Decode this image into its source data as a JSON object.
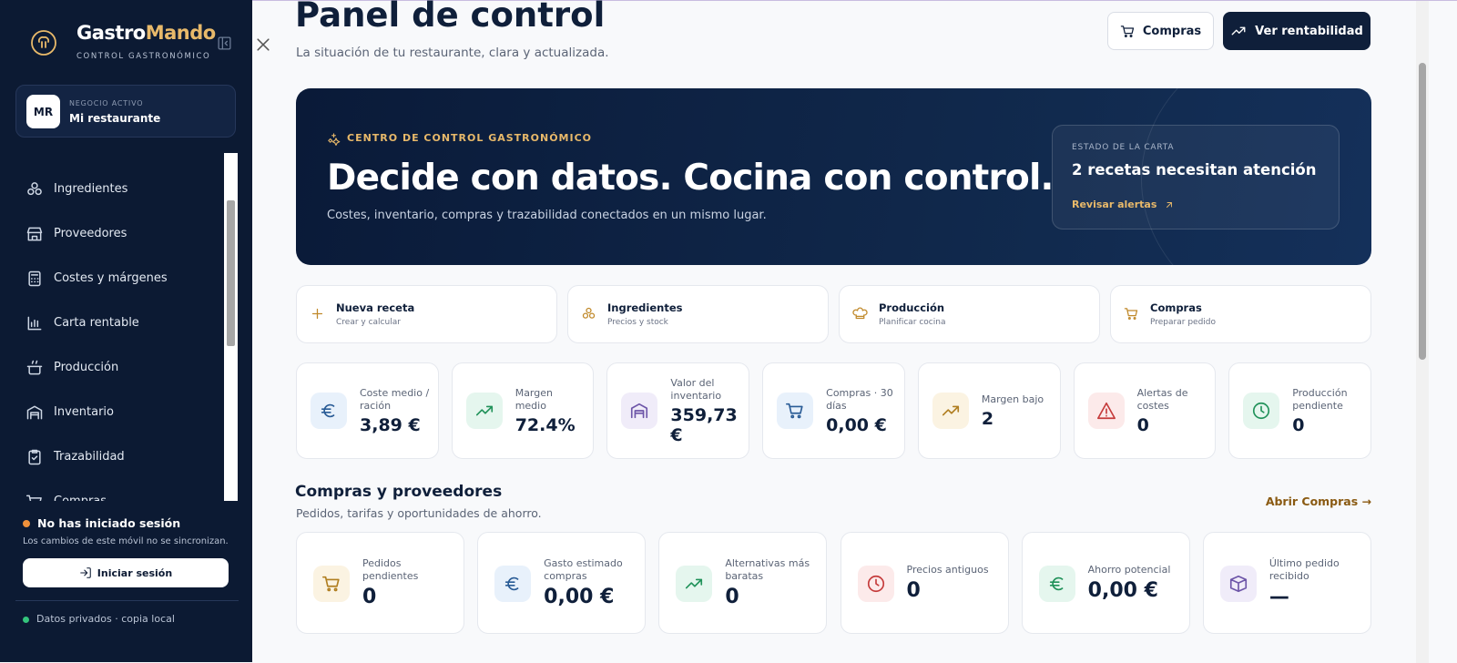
{
  "sidebar": {
    "brand": {
      "name_a": "Gastro",
      "name_b": "Mando",
      "tagline": "CONTROL GASTRONÓMICO"
    },
    "business": {
      "initials": "MR",
      "label": "NEGOCIO ACTIVO",
      "name": "Mi restaurante"
    },
    "nav": [
      "Ingredientes",
      "Proveedores",
      "Costes y márgenes",
      "Carta rentable",
      "Producción",
      "Inventario",
      "Trazabilidad",
      "Compras"
    ],
    "session": {
      "title": "No has iniciado sesión",
      "note": "Los cambios de este móvil no se sincronizan.",
      "button": "Iniciar sesión"
    },
    "footer": "Datos privados · copia local"
  },
  "header": {
    "title": "Panel de control",
    "subtitle": "La situación de tu restaurante, clara y actualizada.",
    "buttons": [
      "Compras",
      "Ver rentabilidad"
    ]
  },
  "hero": {
    "eyebrow": "CENTRO DE CONTROL GASTRONÓMICO",
    "title": "Decide con datos. Cocina con control.",
    "text": "Costes, inventario, compras y trazabilidad conectados en un mismo lugar.",
    "status": {
      "label": "ESTADO DE LA CARTA",
      "title": "2 recetas necesitan atención",
      "link": "Revisar alertas"
    }
  },
  "quick_actions": [
    {
      "title": "Nueva receta",
      "subtitle": "Crear y calcular"
    },
    {
      "title": "Ingredientes",
      "subtitle": "Precios y stock"
    },
    {
      "title": "Producción",
      "subtitle": "Planificar cocina"
    },
    {
      "title": "Compras",
      "subtitle": "Preparar pedido"
    }
  ],
  "kpis": [
    {
      "label": "Coste medio / ración",
      "value": "3,89 €"
    },
    {
      "label": "Margen medio",
      "value": "72.4%"
    },
    {
      "label": "Valor del inventario",
      "value": "359,73 €"
    },
    {
      "label": "Compras · 30 días",
      "value": "0,00 €"
    },
    {
      "label": "Margen bajo",
      "value": "2"
    },
    {
      "label": "Alertas de costes",
      "value": "0"
    },
    {
      "label": "Producción pendiente",
      "value": "0"
    }
  ],
  "purchases": {
    "title": "Compras y proveedores",
    "subtitle": "Pedidos, tarifas y oportunidades de ahorro.",
    "link": "Abrir Compras →",
    "cards": [
      {
        "label": "Pedidos pendientes",
        "value": "0"
      },
      {
        "label": "Gasto estimado compras",
        "value": "0,00 €"
      },
      {
        "label": "Alternativas más baratas",
        "value": "0"
      },
      {
        "label": "Precios antiguos",
        "value": "0"
      },
      {
        "label": "Ahorro potencial",
        "value": "0,00 €"
      },
      {
        "label": "Último pedido recibido",
        "value": "—"
      }
    ]
  }
}
